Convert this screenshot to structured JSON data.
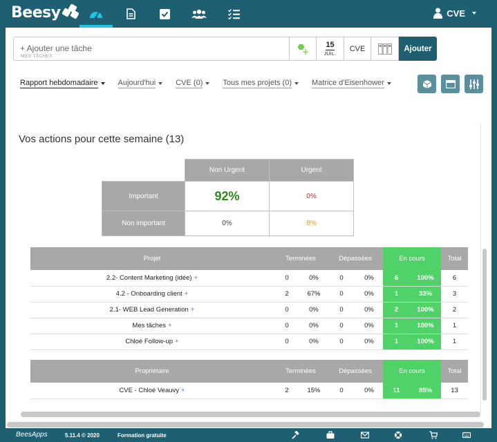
{
  "app": {
    "logo": "Beesy",
    "user": "CVE"
  },
  "nav": [
    "dashboard-icon",
    "document-icon",
    "checkbox-icon",
    "team-icon",
    "checklist-icon"
  ],
  "add_task": {
    "placeholder": "+ Ajouter une tâche",
    "sublabel": "MES TÂCHES",
    "date_day": "15",
    "date_month": "JUIL.",
    "owner": "CVE",
    "button": "Ajouter"
  },
  "filters": [
    {
      "label": "Rapport hebdomadaire"
    },
    {
      "label": "Aujourd'hui"
    },
    {
      "label": "CVE (0)"
    },
    {
      "label": "Tous mes projets (0)"
    },
    {
      "label": "Matrice d'Eisenhower"
    }
  ],
  "report": {
    "title": "Vos actions pour cette semaine (13)",
    "matrix": {
      "col_headers": [
        "Non Urgent",
        "Urgent"
      ],
      "rows": [
        {
          "label": "Important",
          "values": [
            "92%",
            "0%"
          ]
        },
        {
          "label": "Non important",
          "values": [
            "0%",
            "8%"
          ]
        }
      ]
    },
    "projects": {
      "headers": [
        "Projet",
        "Terminées",
        "Dépassées",
        "En cours",
        "Total"
      ],
      "rows": [
        {
          "name": "2.2- Content Marketing (idée)",
          "done_n": "0",
          "done_p": "0%",
          "over_n": "0",
          "over_p": "0%",
          "cur_n": "6",
          "cur_p": "100%",
          "total": "6"
        },
        {
          "name": "4.2 - Onboarding client",
          "done_n": "2",
          "done_p": "67%",
          "over_n": "0",
          "over_p": "0%",
          "cur_n": "1",
          "cur_p": "33%",
          "total": "3"
        },
        {
          "name": "2.1- WEB Lead Generation",
          "done_n": "0",
          "done_p": "0%",
          "over_n": "0",
          "over_p": "0%",
          "cur_n": "2",
          "cur_p": "100%",
          "total": "2"
        },
        {
          "name": "Mes tâches",
          "done_n": "0",
          "done_p": "0%",
          "over_n": "0",
          "over_p": "0%",
          "cur_n": "1",
          "cur_p": "100%",
          "total": "1"
        },
        {
          "name": "Chloé Follow-up",
          "done_n": "0",
          "done_p": "0%",
          "over_n": "0",
          "over_p": "0%",
          "cur_n": "1",
          "cur_p": "100%",
          "total": "1"
        }
      ]
    },
    "owners": {
      "headers": [
        "Propriétaire",
        "Terminées",
        "Dépassées",
        "En cours",
        "Total"
      ],
      "rows": [
        {
          "name": "CVE - Chloé Veauvy",
          "done_n": "2",
          "done_p": "15%",
          "over_n": "0",
          "over_p": "0%",
          "cur_n": "11",
          "cur_p": "85%",
          "total": "13"
        }
      ]
    }
  },
  "footer": {
    "brand": "BeesApps",
    "version": "5.11.4 © 2020",
    "training": "Formation gratuite"
  },
  "colors": {
    "brand": "#1f5f72",
    "accent": "#1cc7e6",
    "in_progress": "#4fd267",
    "header_grey": "#a8a8a8"
  }
}
